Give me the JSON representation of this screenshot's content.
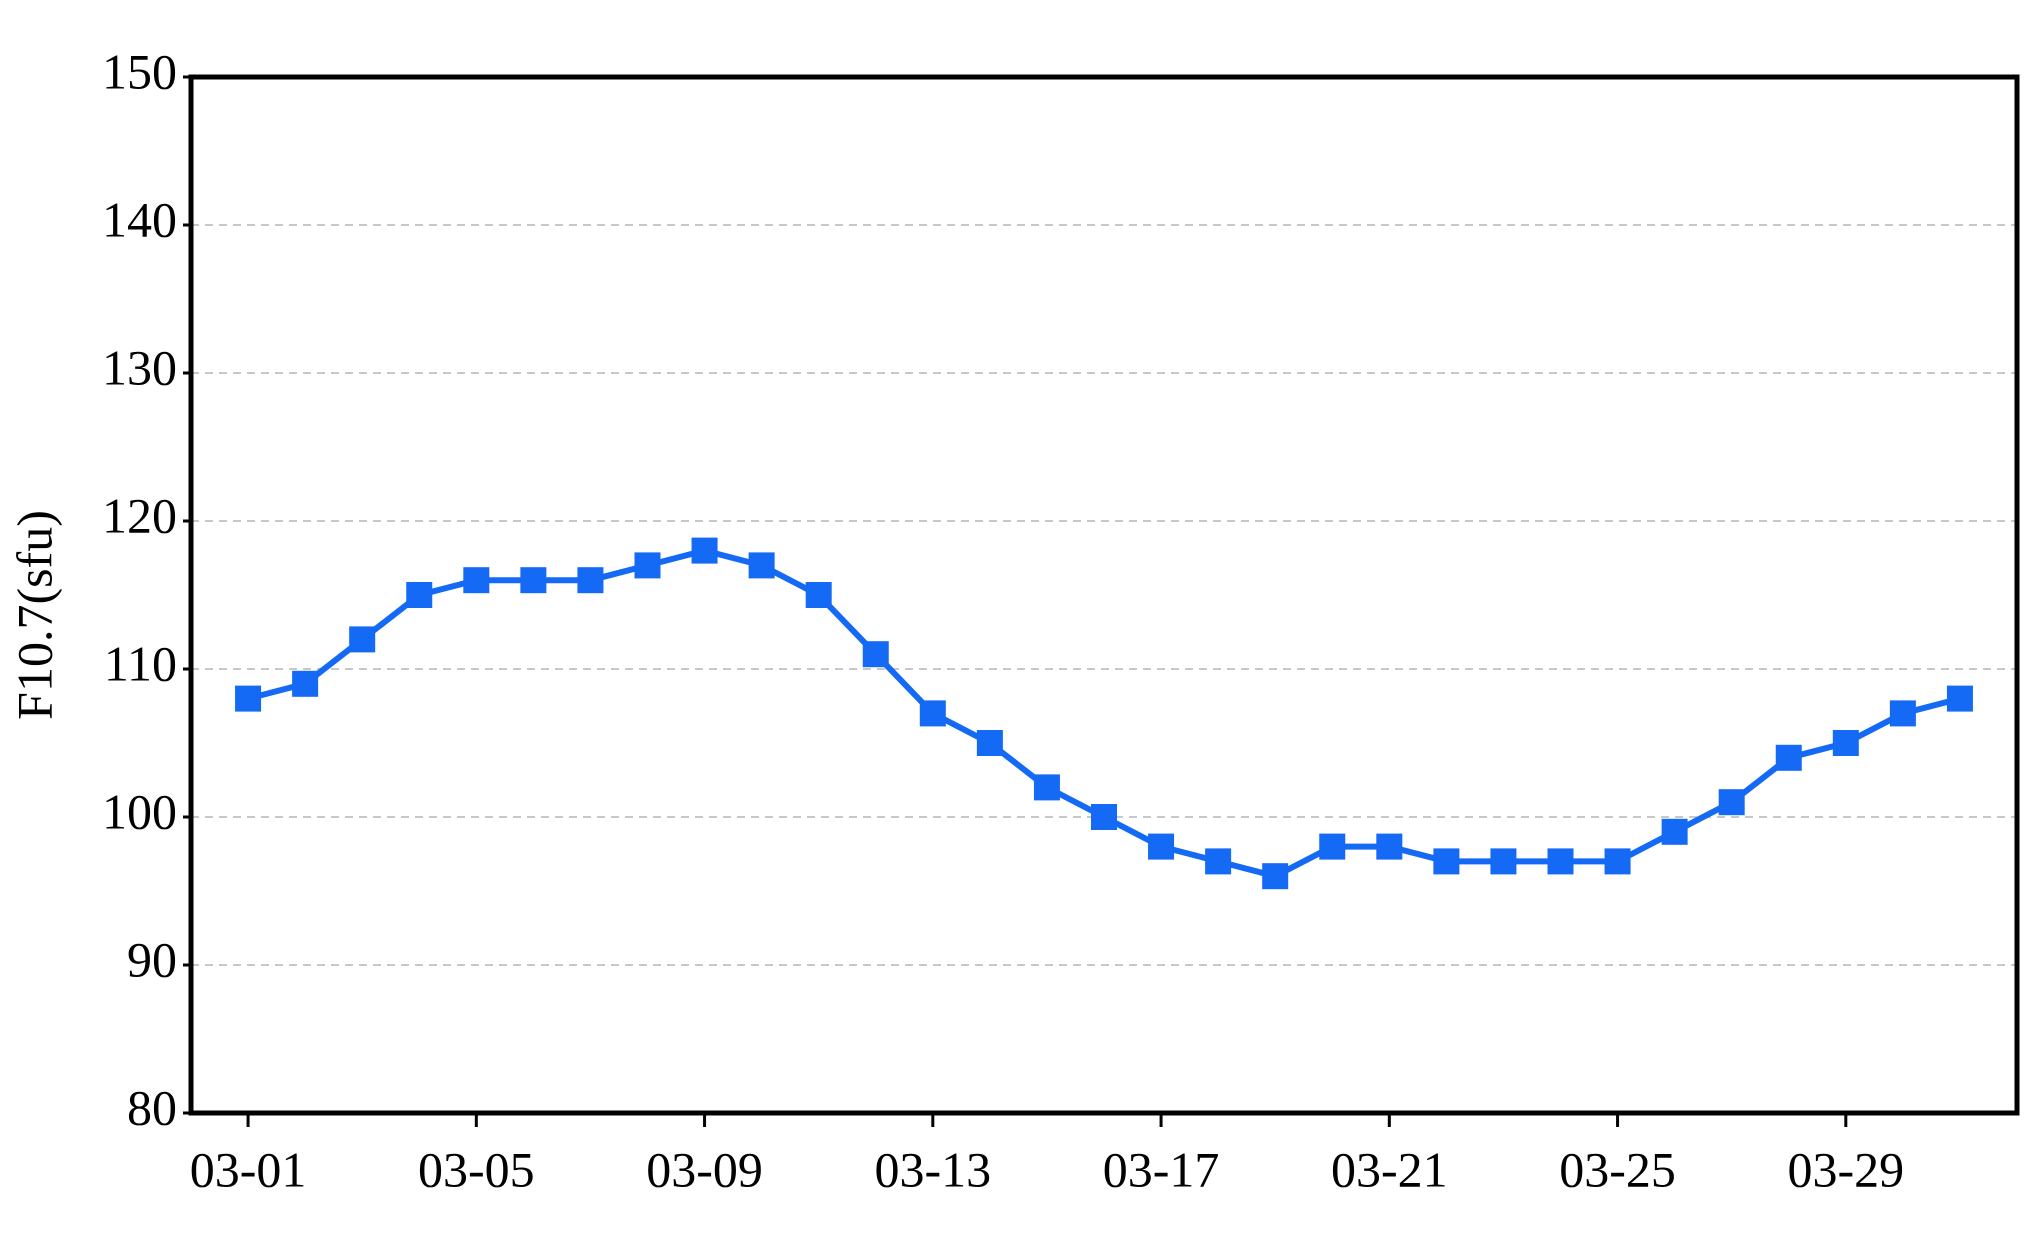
{
  "chart_data": {
    "type": "line",
    "ylabel": "F10.7(sfu)",
    "categories": [
      "03-01",
      null,
      null,
      null,
      "03-05",
      null,
      null,
      null,
      "03-09",
      null,
      null,
      null,
      "03-13",
      null,
      null,
      null,
      "03-17",
      null,
      null,
      null,
      "03-21",
      null,
      null,
      null,
      "03-25",
      null,
      null,
      null,
      "03-29",
      null,
      null
    ],
    "series": [
      {
        "name": "F10.7",
        "color": "#1469f5",
        "values": [
          108,
          109,
          112,
          115,
          116,
          116,
          116,
          117,
          118,
          117,
          115,
          111,
          107,
          105,
          102,
          100,
          98,
          97,
          96,
          98,
          98,
          97,
          97,
          97,
          97,
          99,
          101,
          104,
          105,
          107,
          108
        ]
      }
    ],
    "ylim": [
      80,
      150
    ],
    "yticks": [
      80,
      90,
      100,
      110,
      120,
      130,
      140,
      150
    ],
    "grid": true
  }
}
